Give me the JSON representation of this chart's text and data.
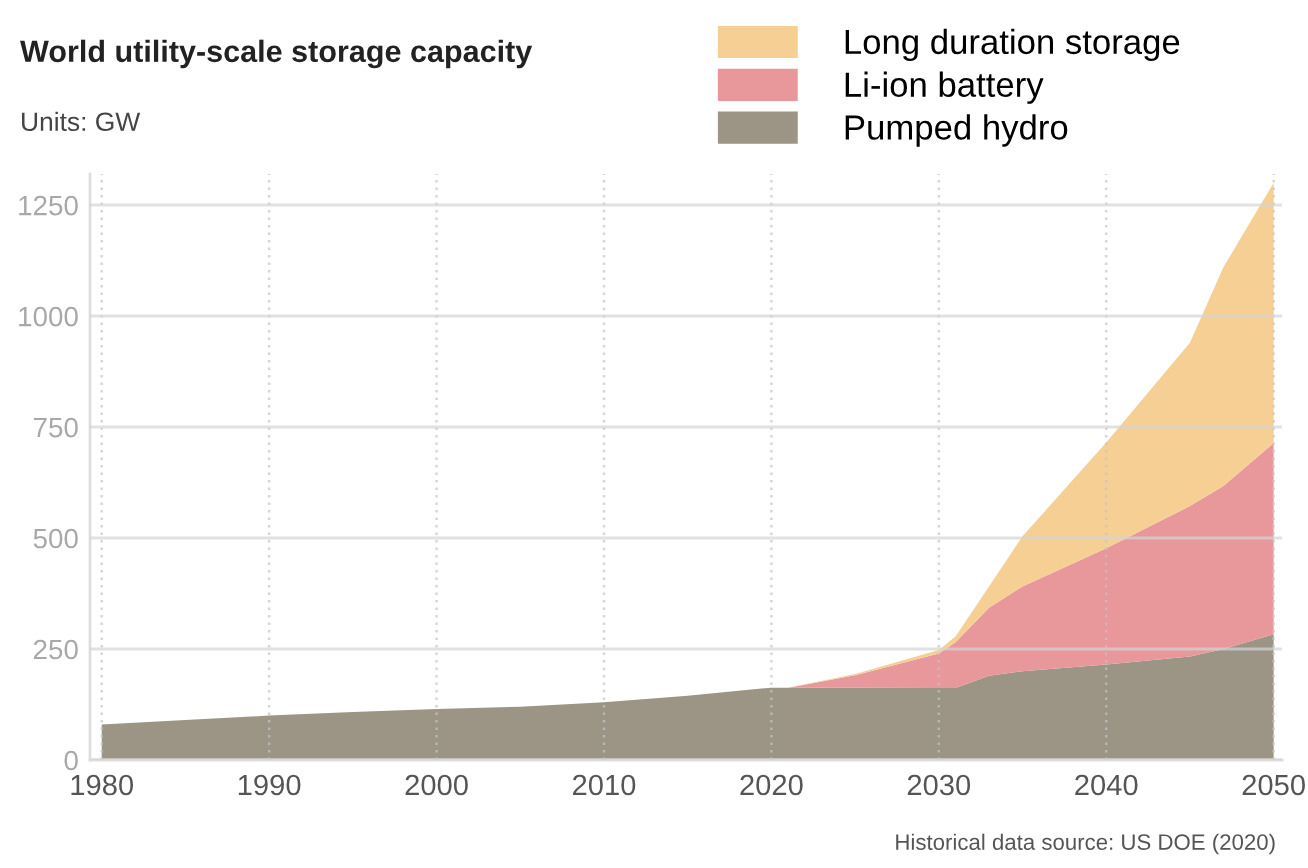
{
  "chart_data": {
    "type": "area",
    "title": "World utility-scale storage capacity",
    "subtitle": "Units: GW",
    "annotations": [
      "Historical data source: US DOE (2020)"
    ],
    "x": [
      1980,
      1985,
      1990,
      1995,
      2000,
      2005,
      2010,
      2015,
      2020,
      2021,
      2025,
      2030,
      2031,
      2033,
      2035,
      2040,
      2045,
      2047,
      2050
    ],
    "stacked": true,
    "series": [
      {
        "name": "Pumped hydro",
        "color": "#9c9585",
        "values": [
          80,
          90,
          100,
          108,
          115,
          120,
          130,
          145,
          163,
          163,
          163,
          162,
          162,
          190,
          200,
          215,
          233,
          250,
          283
        ]
      },
      {
        "name": "Li-ion battery",
        "color": "#e8979b",
        "values": [
          null,
          null,
          null,
          null,
          null,
          null,
          null,
          null,
          null,
          0,
          28,
          78,
          103,
          153,
          191,
          262,
          339,
          367,
          431
        ]
      },
      {
        "name": "Long duration storage",
        "color": "#f6cf95",
        "values": [
          null,
          null,
          null,
          null,
          null,
          null,
          null,
          null,
          null,
          0,
          3,
          8,
          13,
          48,
          113,
          238,
          368,
          493,
          586
        ]
      }
    ],
    "xlim": [
      1979.3,
      2050.5
    ],
    "xticks": [
      1980,
      1990,
      2000,
      2010,
      2020,
      2030,
      2040,
      2050
    ],
    "ylim": [
      0,
      1320
    ],
    "yticks": [
      0,
      250,
      500,
      750,
      1000,
      1250
    ],
    "grid": true,
    "legend": "top right"
  }
}
